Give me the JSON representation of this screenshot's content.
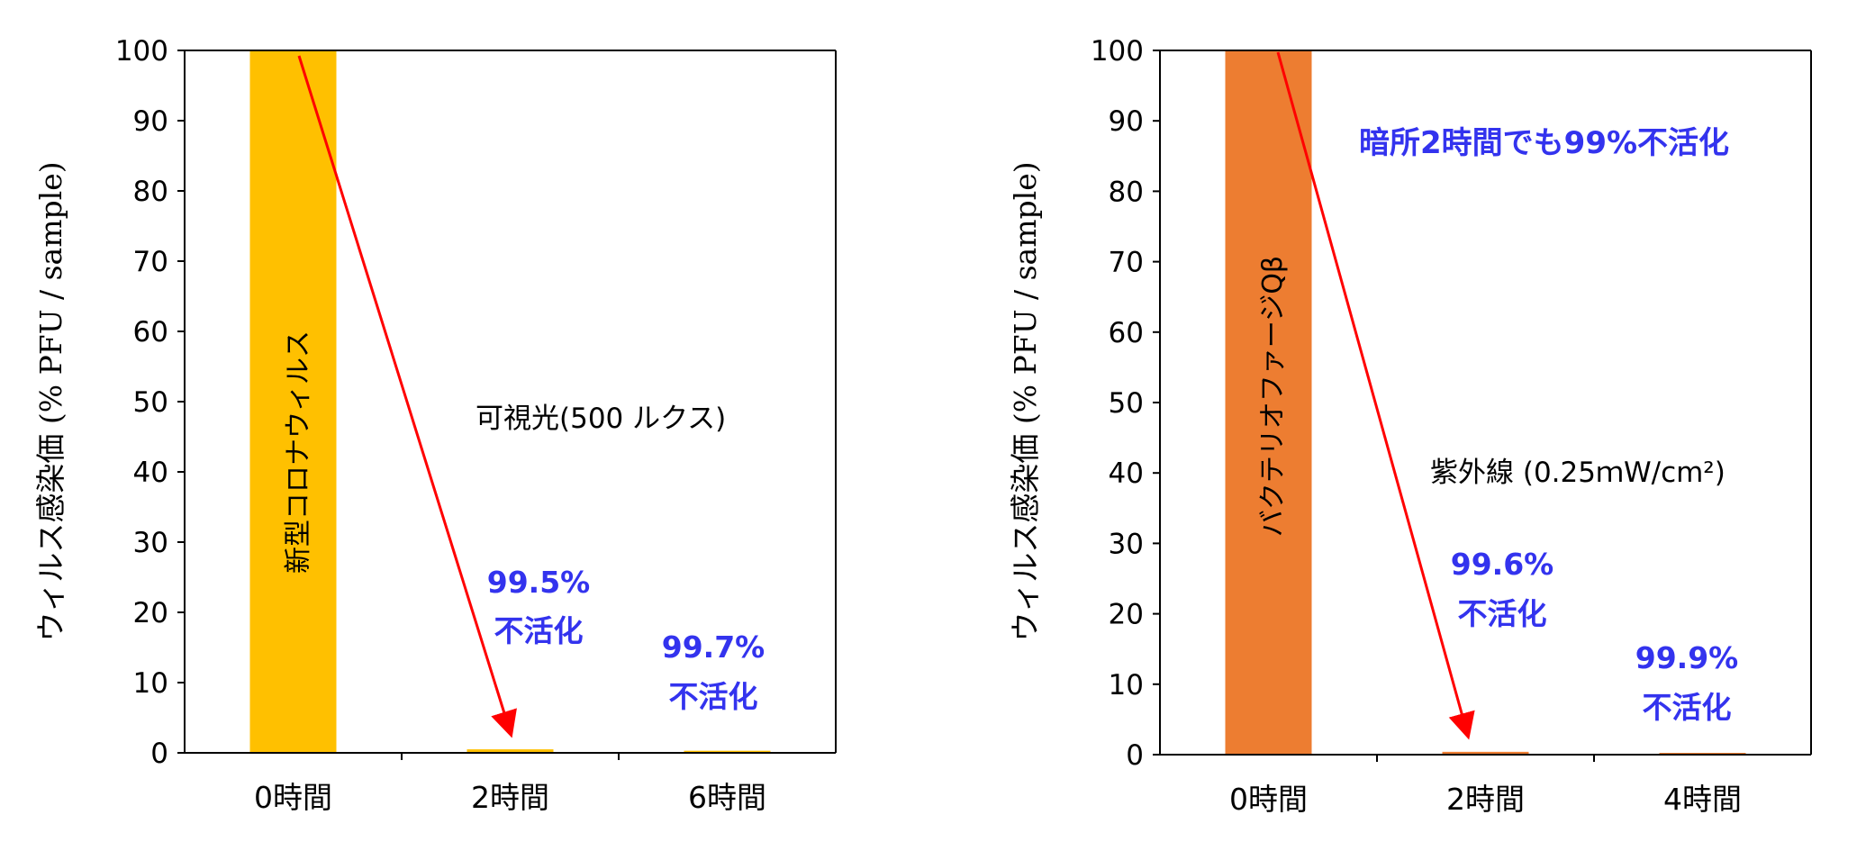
{
  "chart_data": [
    {
      "type": "bar",
      "categories": [
        "0時間",
        "2時間",
        "6時間"
      ],
      "values": [
        100,
        0.5,
        0.3
      ],
      "ylim": [
        0,
        100
      ],
      "yticks": [
        0,
        10,
        20,
        30,
        40,
        50,
        60,
        70,
        80,
        90,
        100
      ],
      "ylabel": "ウィルス感染価 (% PFU / sample)",
      "bar_color": "#FFC000",
      "bar_label": "新型コロナウィルス",
      "condition": "可視光(500 ルクス)",
      "note": "",
      "annotations": [
        {
          "value": "99.5%",
          "text": "不活化"
        },
        {
          "value": "99.7%",
          "text": "不活化"
        }
      ],
      "grid": false
    },
    {
      "type": "bar",
      "categories": [
        "0時間",
        "2時間",
        "4時間"
      ],
      "values": [
        100,
        0.4,
        0.1
      ],
      "ylim": [
        0,
        100
      ],
      "yticks": [
        0,
        10,
        20,
        30,
        40,
        50,
        60,
        70,
        80,
        90,
        100
      ],
      "ylabel": "ウィルス感染価 (% PFU / sample)",
      "bar_color": "#ED7D31",
      "bar_label": "バクテリオファージQβ",
      "condition": "紫外線 (0.25ｍW/cm²)",
      "note": "暗所2時間でも99%不活化",
      "annotations": [
        {
          "value": "99.6%",
          "text": "不活化"
        },
        {
          "value": "99.9%",
          "text": "不活化"
        }
      ],
      "grid": false
    }
  ],
  "colors": {
    "arrow": "#FF0000",
    "annotation": "#3333EE",
    "axis": "#000000"
  }
}
